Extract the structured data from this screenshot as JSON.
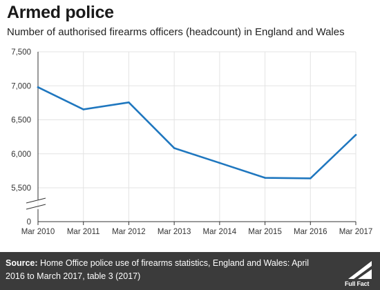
{
  "header": {
    "title": "Armed police",
    "subtitle": "Number of authorised firearms officers (headcount) in England and Wales"
  },
  "chart_data": {
    "type": "line",
    "title": "Armed police",
    "subtitle": "Number of authorised firearms officers (headcount) in England and Wales",
    "xlabel": "",
    "ylabel": "",
    "categories": [
      "Mar 2010",
      "Mar 2011",
      "Mar 2012",
      "Mar 2013",
      "Mar 2014",
      "Mar 2015",
      "Mar 2016",
      "Mar 2017"
    ],
    "series": [
      {
        "values": [
          6979,
          6653,
          6756,
          6084,
          5866,
          5647,
          5639,
          6278
        ]
      }
    ],
    "y_ticks": [
      "7,500",
      "7,000",
      "6,500",
      "6,000",
      "5,500",
      "0"
    ],
    "y_tick_values": [
      7500,
      7000,
      6500,
      6000,
      5500,
      0
    ],
    "ylim": [
      5000,
      7500
    ],
    "axis_break": true,
    "grid": true,
    "line_color": "#1f77bf",
    "grid_color": "#e3e3e3"
  },
  "footer": {
    "source_label": "Source:",
    "source_text": "Home Office police use of firearms statistics, England and Wales: April 2016 to March 2017, table 3 (2017)",
    "logo_text": "Full Fact",
    "background": "#3b3b3b"
  }
}
